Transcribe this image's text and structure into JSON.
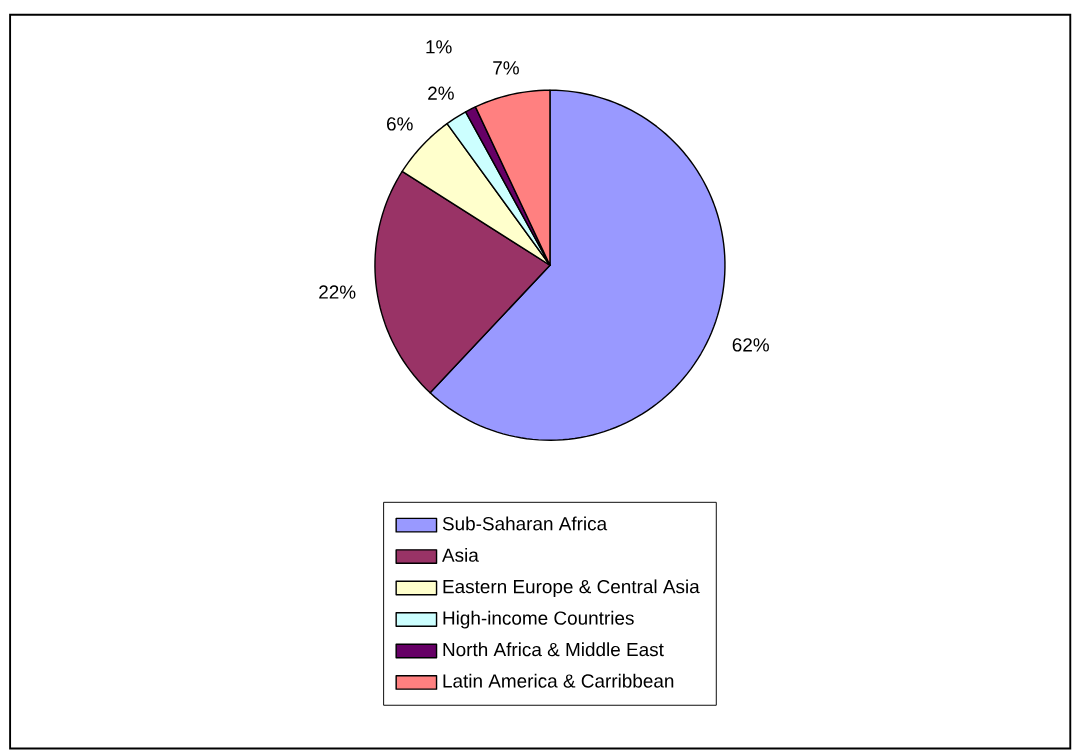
{
  "chart_data": {
    "type": "pie",
    "categories": [
      "Sub-Saharan Africa",
      "Asia",
      "Eastern Europe & Central Asia",
      "High-income Countries",
      "North Africa & Middle East",
      "Latin America & Carribbean"
    ],
    "values": [
      62,
      22,
      6,
      2,
      1,
      7
    ],
    "colors": [
      "#9999ff",
      "#993366",
      "#ffffcc",
      "#ccffff",
      "#660066",
      "#ff8080"
    ],
    "value_labels": [
      "62%",
      "22%",
      "6%",
      "2%",
      "1%",
      "7%"
    ],
    "legend": "bottom"
  }
}
